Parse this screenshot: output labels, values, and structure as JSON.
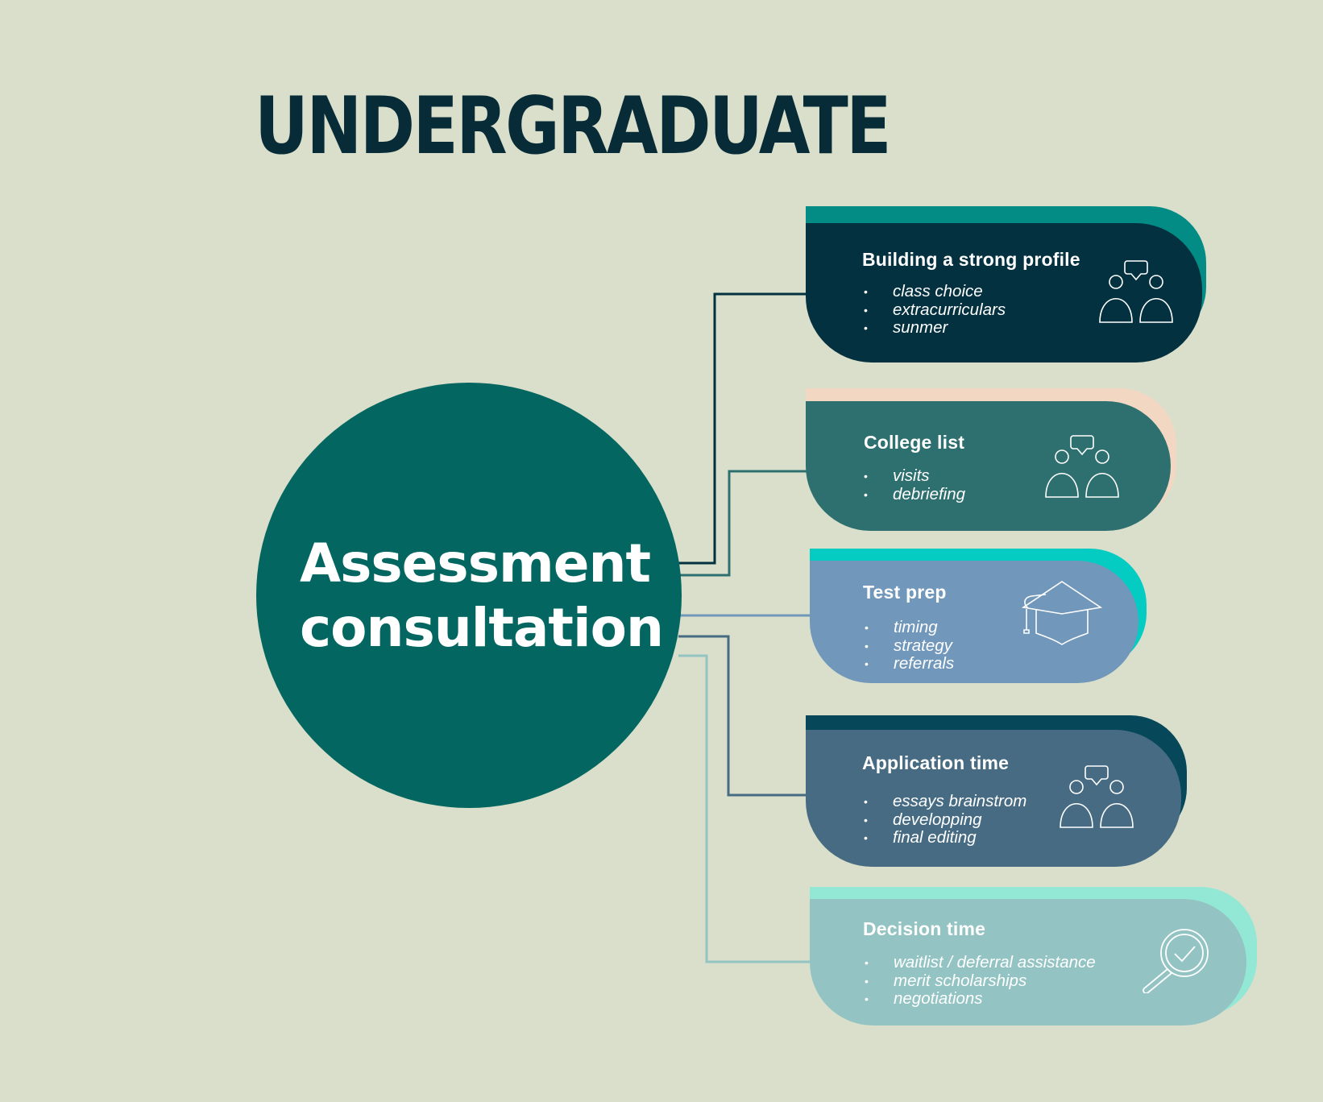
{
  "title": "UNDERGRADUATE",
  "hub": {
    "line1": "Assessment",
    "line2": "consultation",
    "color": "#036660"
  },
  "cards": [
    {
      "title": "Building a strong profile",
      "items": [
        "class choice",
        "extracurriculars",
        "sunmer"
      ],
      "icon": "people-chat-icon",
      "color": "#03313f",
      "accent": "#038c85"
    },
    {
      "title": "College list",
      "items": [
        "visits",
        "debriefing"
      ],
      "icon": "people-chat-icon",
      "color": "#2e706f",
      "accent": "#f2d7c3"
    },
    {
      "title": "Test prep",
      "items": [
        "timing",
        "strategy",
        "referrals"
      ],
      "icon": "graduation-cap-icon",
      "color": "#7197ba",
      "accent": "#05ccc3"
    },
    {
      "title": "Application time",
      "items": [
        "essays brainstrom",
        "developping",
        "final editing"
      ],
      "icon": "people-chat-icon",
      "color": "#476b82",
      "accent": "#06475a"
    },
    {
      "title": "Decision time",
      "items": [
        "waitlist / deferral assistance",
        "merit scholarships",
        "negotiations"
      ],
      "icon": "magnifier-check-icon",
      "color": "#93c4c3",
      "accent": "#92e8d5"
    }
  ]
}
